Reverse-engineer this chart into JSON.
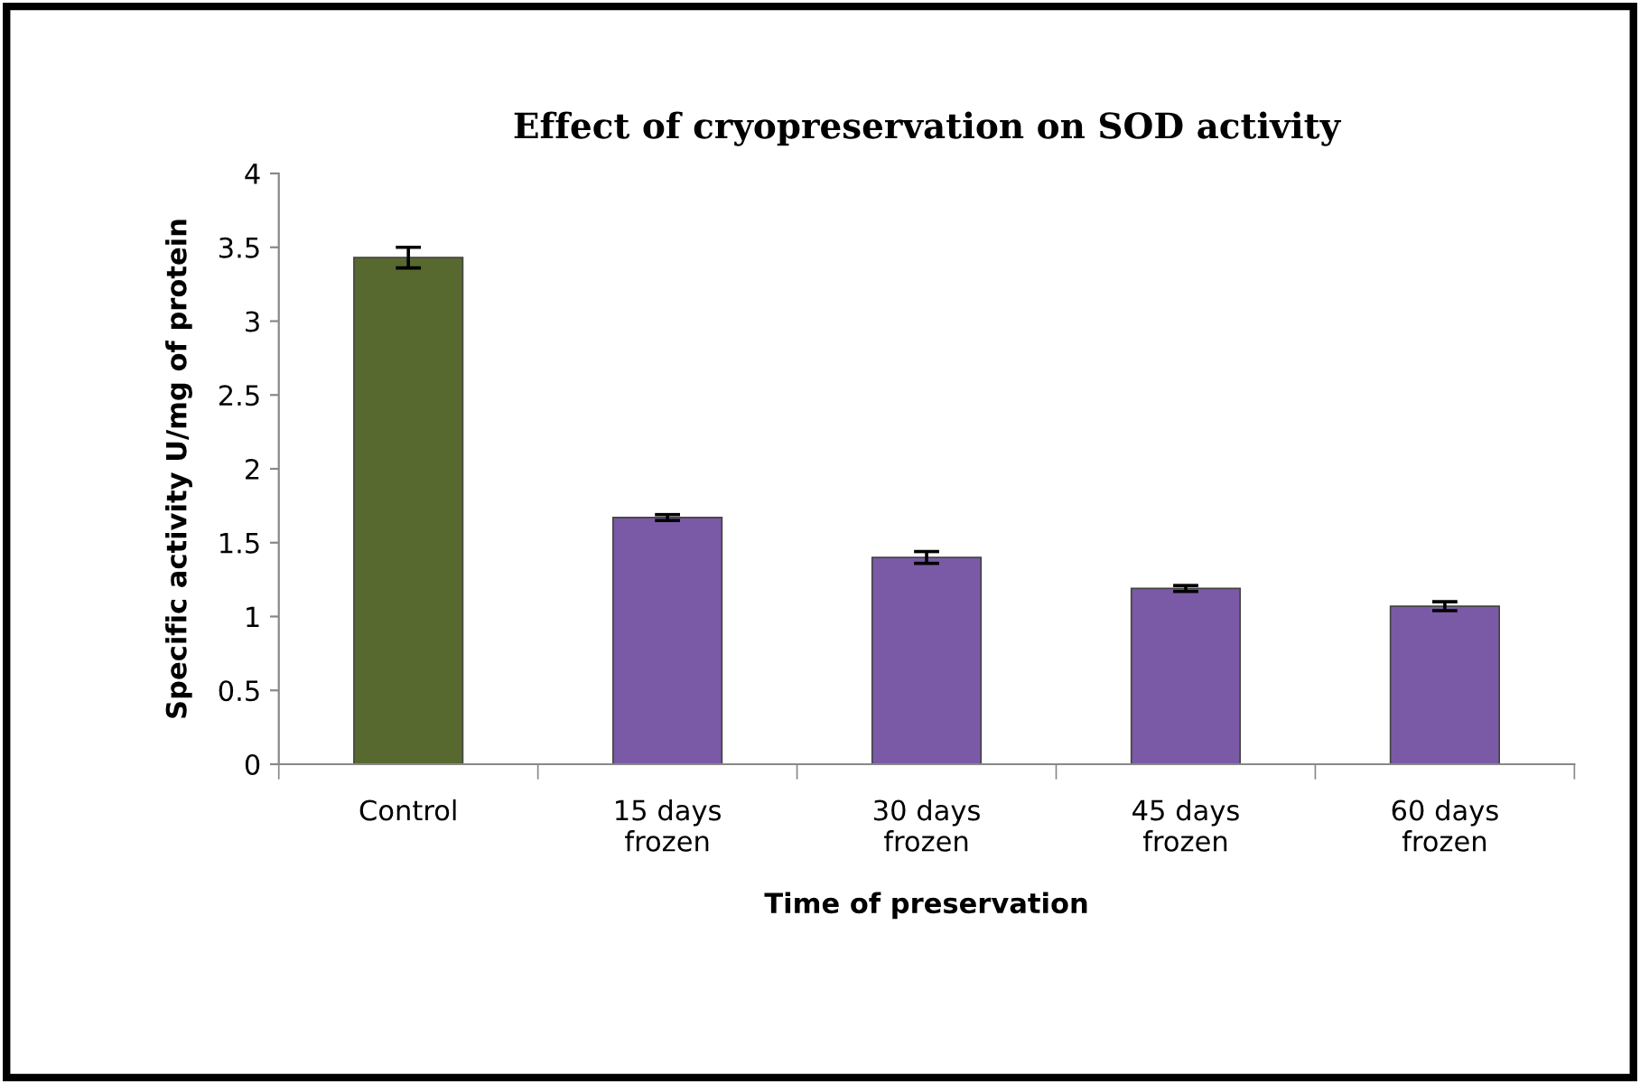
{
  "chart_data": {
    "type": "bar",
    "title": "Effect of cryopreservation on SOD activity",
    "xlabel": "Time of preservation",
    "ylabel": "Specific activity U/mg of protein",
    "categories": [
      "Control",
      "15 days\nfrozen",
      "30 days\nfrozen",
      "45 days\nfrozen",
      "60 days\nfrozen"
    ],
    "values": [
      3.43,
      1.67,
      1.4,
      1.19,
      1.07
    ],
    "errors": [
      0.07,
      0.02,
      0.04,
      0.02,
      0.03
    ],
    "colors": [
      "#58692f",
      "#7a5aa6",
      "#7a5aa6",
      "#7a5aa6",
      "#7a5aa6"
    ],
    "ylim": [
      0,
      4
    ],
    "yticks": [
      0,
      0.5,
      1,
      1.5,
      2,
      2.5,
      3,
      3.5,
      4
    ],
    "grid": false,
    "legend": false
  }
}
